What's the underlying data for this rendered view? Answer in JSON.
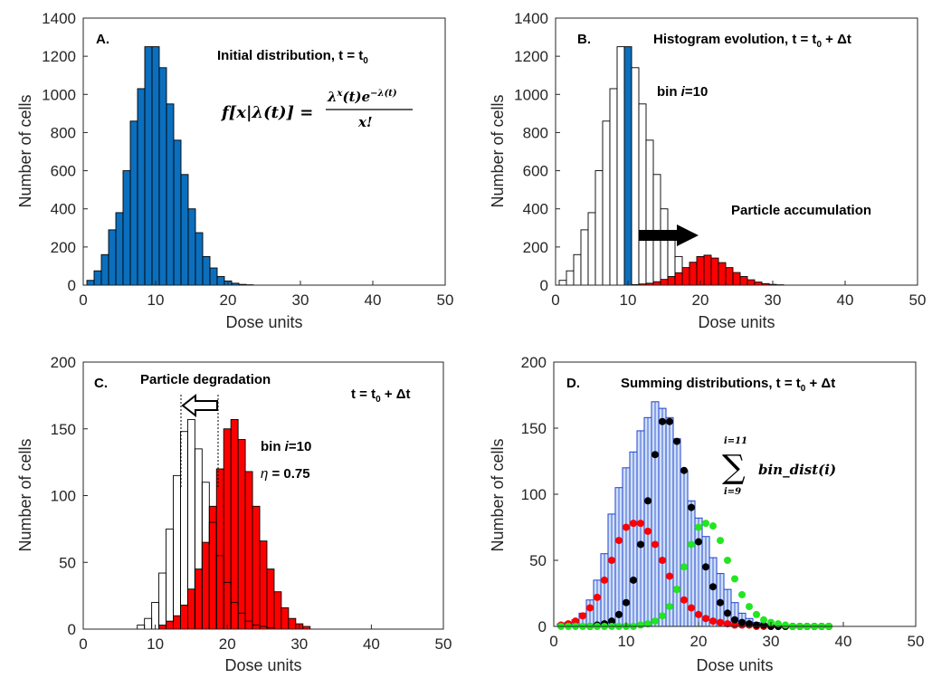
{
  "chart_data": [
    {
      "panel": "A",
      "type": "bar",
      "xlabel": "Dose units",
      "ylabel": "Number of cells",
      "xlim": [
        0,
        50
      ],
      "ylim": [
        0,
        1400
      ],
      "xticks": [
        "0",
        "10",
        "20",
        "30",
        "40",
        "50"
      ],
      "yticks": [
        "0",
        "200",
        "400",
        "600",
        "800",
        "1000",
        "1200",
        "1400"
      ],
      "grid": false,
      "label": "A.",
      "annotation": {
        "title": "Initial distribution, t = t",
        "title_sub": "0"
      },
      "equation": {
        "lhs": "f[x|λ(t)] =",
        "numerator": "λ",
        "numerator_sup": "x",
        "numerator_mid": "(t)e",
        "numerator_sup2": "−λ(t)",
        "denominator": "x!"
      },
      "colors": {
        "bar": "#0b6fbd"
      },
      "series": [
        {
          "bins": [
            1,
            2,
            3,
            4,
            5,
            6,
            7,
            8,
            9,
            10,
            11,
            12,
            13,
            14,
            15,
            16,
            17,
            18,
            19,
            20,
            21,
            22,
            23
          ],
          "values": [
            25,
            75,
            160,
            290,
            380,
            600,
            860,
            1030,
            1250,
            1250,
            1140,
            950,
            760,
            580,
            400,
            275,
            150,
            90,
            45,
            22,
            10,
            4,
            2
          ]
        }
      ]
    },
    {
      "panel": "B",
      "type": "bar",
      "xlabel": "Dose units",
      "ylabel": "Number of cells",
      "xlim": [
        0,
        50
      ],
      "ylim": [
        0,
        1400
      ],
      "xticks": [
        "0",
        "10",
        "20",
        "30",
        "40",
        "50"
      ],
      "yticks": [
        "0",
        "200",
        "400",
        "600",
        "800",
        "1000",
        "1200",
        "1400"
      ],
      "grid": false,
      "label": "B.",
      "annotation": {
        "title": "Histogram evolution, t = t",
        "title_sub": "0",
        "title_tail": " + Δt"
      },
      "bin_label": {
        "prefix": "bin ",
        "var": "i",
        "suffix": "=10"
      },
      "arrow_label": "Particle accumulation",
      "colors": {
        "outline": "#ffffff",
        "highlight": "#0b6fbd",
        "shifted": "#ff0000"
      },
      "series": [
        {
          "bins": [
            1,
            2,
            3,
            4,
            5,
            6,
            7,
            8,
            9,
            10,
            11,
            12,
            13,
            14,
            15,
            16,
            17,
            18,
            19,
            20,
            21,
            22,
            23
          ],
          "values": [
            25,
            75,
            160,
            290,
            380,
            600,
            860,
            1030,
            1250,
            1250,
            1140,
            950,
            760,
            580,
            400,
            275,
            150,
            90,
            45,
            22,
            10,
            4,
            2
          ],
          "highlight_bin": 10
        },
        {
          "bins": [
            11,
            12,
            13,
            14,
            15,
            16,
            17,
            18,
            19,
            20,
            21,
            22,
            23,
            24,
            25,
            26,
            27,
            28,
            29,
            30,
            31
          ],
          "values": [
            3,
            6,
            10,
            18,
            30,
            45,
            65,
            92,
            120,
            150,
            157,
            142,
            118,
            92,
            66,
            45,
            28,
            16,
            8,
            4,
            2
          ]
        }
      ]
    },
    {
      "panel": "C",
      "type": "bar",
      "xlabel": "Dose units",
      "ylabel": "Number of cells",
      "xlim": [
        0,
        50
      ],
      "ylim": [
        0,
        200
      ],
      "xticks": [
        "0",
        "10",
        "20",
        "30",
        "40",
        "50"
      ],
      "yticks": [
        "0",
        "50",
        "100",
        "150",
        "200"
      ],
      "grid": false,
      "label": "C.",
      "annotation": {
        "title": "Particle degradation"
      },
      "time_label": {
        "text": "t = t",
        "sub": "0",
        "tail": " + Δt"
      },
      "bin_label": {
        "prefix": "bin ",
        "var": "i",
        "suffix": "=10"
      },
      "eta_label": {
        "var": "η",
        "text": " = 0.75"
      },
      "colors": {
        "degraded": "#ffffff",
        "original": "#ff0000"
      },
      "series": [
        {
          "name": "degraded",
          "bins": [
            8,
            9,
            10,
            11,
            12,
            13,
            14,
            15,
            16,
            17,
            18,
            19,
            20,
            21,
            22,
            23,
            24,
            25,
            26
          ],
          "values": [
            3,
            8,
            20,
            42,
            75,
            115,
            148,
            157,
            135,
            110,
            80,
            55,
            35,
            20,
            12,
            6,
            3,
            2,
            1
          ]
        },
        {
          "name": "original",
          "bins": [
            11,
            12,
            13,
            14,
            15,
            16,
            17,
            18,
            19,
            20,
            21,
            22,
            23,
            24,
            25,
            26,
            27,
            28,
            29,
            30,
            31
          ],
          "values": [
            3,
            6,
            10,
            18,
            30,
            45,
            65,
            92,
            120,
            150,
            157,
            142,
            118,
            92,
            66,
            45,
            28,
            16,
            8,
            4,
            2
          ]
        }
      ]
    },
    {
      "panel": "D",
      "type": "bar",
      "xlabel": "Dose units",
      "ylabel": "Number of cells",
      "xlim": [
        0,
        50
      ],
      "ylim": [
        0,
        200
      ],
      "xticks": [
        "0",
        "10",
        "20",
        "30",
        "40",
        "50"
      ],
      "yticks": [
        "0",
        "50",
        "100",
        "150",
        "200"
      ],
      "grid": false,
      "label": "D.",
      "annotation": {
        "title": "Summing distributions, t = t",
        "title_sub": "0",
        "title_tail": " + Δt"
      },
      "sum_label": {
        "upper": "i=11",
        "lower": "i=9",
        "symbol": "∑",
        "term": "bin_dist(i)"
      },
      "colors": {
        "bar_fill": "#cfe0f7",
        "bar_edge": "#1f3fd0",
        "red": "#ff0000",
        "black": "#000000",
        "green": "#22e622"
      },
      "series": [
        {
          "name": "sum",
          "bins": [
            1,
            2,
            3,
            4,
            5,
            6,
            7,
            8,
            9,
            10,
            11,
            12,
            13,
            14,
            15,
            16,
            17,
            18,
            19,
            20,
            21,
            22,
            23,
            24,
            25,
            26,
            27,
            28,
            29,
            30
          ],
          "values": [
            2,
            3,
            5,
            10,
            20,
            35,
            55,
            85,
            105,
            120,
            132,
            148,
            158,
            170,
            165,
            158,
            142,
            118,
            95,
            82,
            68,
            52,
            40,
            28,
            18,
            10,
            6,
            3,
            2,
            1
          ]
        },
        {
          "name": "red",
          "x": [
            1,
            2,
            3,
            4,
            5,
            6,
            7,
            8,
            9,
            10,
            11,
            12,
            13,
            14,
            15,
            16,
            17,
            18,
            19,
            20,
            21,
            22,
            23,
            24,
            25,
            26,
            27,
            28,
            29,
            30,
            31,
            32,
            33,
            34,
            35,
            36,
            37,
            38
          ],
          "y": [
            1,
            2,
            4,
            8,
            14,
            22,
            35,
            50,
            65,
            75,
            78,
            78,
            72,
            62,
            50,
            38,
            28,
            20,
            14,
            9,
            6,
            4,
            3,
            2,
            1,
            1,
            1,
            0,
            0,
            0,
            0,
            0,
            0,
            0,
            0,
            0,
            0,
            0
          ]
        },
        {
          "name": "black",
          "x": [
            5,
            6,
            7,
            8,
            9,
            10,
            11,
            12,
            13,
            14,
            15,
            16,
            17,
            18,
            19,
            20,
            21,
            22,
            23,
            24,
            25,
            26,
            27,
            28,
            29,
            30,
            31,
            32,
            33,
            34,
            35,
            36,
            37,
            38
          ],
          "y": [
            0,
            1,
            2,
            4,
            9,
            18,
            35,
            62,
            95,
            130,
            155,
            155,
            140,
            118,
            90,
            64,
            45,
            30,
            18,
            10,
            5,
            3,
            2,
            1,
            1,
            0,
            0,
            0,
            0,
            0,
            0,
            0,
            0,
            0
          ]
        },
        {
          "name": "green",
          "x": [
            1,
            2,
            3,
            4,
            5,
            6,
            7,
            8,
            9,
            10,
            11,
            12,
            13,
            14,
            15,
            16,
            17,
            18,
            19,
            20,
            21,
            22,
            23,
            24,
            25,
            26,
            27,
            28,
            29,
            30,
            31,
            32,
            33,
            34,
            35,
            36,
            37,
            38
          ],
          "y": [
            0,
            0,
            0,
            0,
            0,
            0,
            0,
            0,
            0,
            0,
            0,
            1,
            2,
            4,
            8,
            15,
            28,
            45,
            62,
            75,
            78,
            76,
            65,
            50,
            36,
            24,
            15,
            9,
            5,
            3,
            2,
            1,
            0,
            0,
            0,
            0,
            0,
            0
          ]
        }
      ]
    }
  ]
}
